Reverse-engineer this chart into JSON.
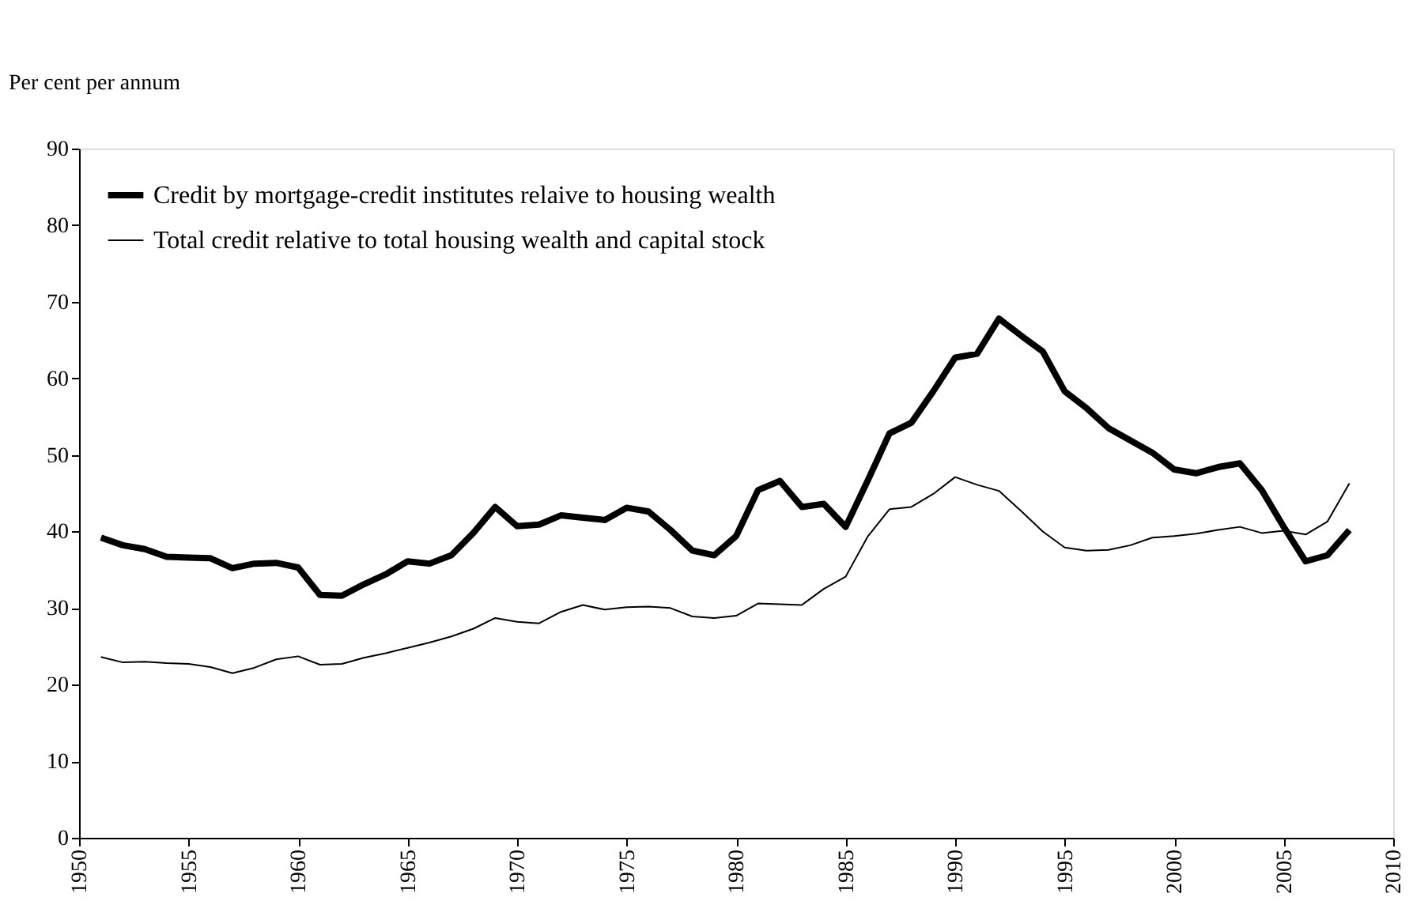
{
  "chart_data": {
    "type": "line",
    "ylabel": "Per cent per annum",
    "x": [
      1951,
      1952,
      1953,
      1954,
      1955,
      1956,
      1957,
      1958,
      1959,
      1960,
      1961,
      1962,
      1963,
      1964,
      1965,
      1966,
      1967,
      1968,
      1969,
      1970,
      1971,
      1972,
      1973,
      1974,
      1975,
      1976,
      1977,
      1978,
      1979,
      1980,
      1981,
      1982,
      1983,
      1984,
      1985,
      1986,
      1987,
      1988,
      1989,
      1990,
      1991,
      1992,
      1993,
      1994,
      1995,
      1996,
      1997,
      1998,
      1999,
      2000,
      2001,
      2002,
      2003,
      2004,
      2005,
      2006,
      2007,
      2008
    ],
    "series": [
      {
        "name": "Credit by mortgage-credit institutes relaive to housing wealth",
        "color": "#000000",
        "values": [
          39.2,
          38.2,
          37.7,
          36.7,
          36.6,
          36.5,
          35.2,
          35.8,
          35.9,
          35.3,
          31.7,
          31.6,
          33.1,
          34.4,
          36.1,
          35.8,
          36.9,
          39.8,
          43.2,
          40.7,
          40.9,
          42.1,
          41.8,
          41.5,
          43.1,
          42.6,
          40.2,
          37.5,
          36.9,
          39.4,
          45.4,
          46.6,
          43.2,
          43.6,
          40.6,
          46.6,
          52.8,
          54.2,
          58.3,
          62.7,
          63.2,
          67.8,
          65.6,
          63.5,
          58.3,
          56.1,
          53.5,
          51.9,
          50.3,
          48.1,
          47.6,
          48.4,
          48.9,
          45.4,
          40.6,
          36.1,
          36.9,
          40.2
        ]
      },
      {
        "name": "Total credit relative to total housing wealth and capital stock",
        "color": "#000000",
        "values": [
          23.6,
          22.9,
          23.0,
          22.8,
          22.7,
          22.3,
          21.5,
          22.2,
          23.3,
          23.7,
          22.6,
          22.7,
          23.5,
          24.1,
          24.8,
          25.5,
          26.3,
          27.3,
          28.7,
          28.2,
          28.0,
          29.5,
          30.4,
          29.8,
          30.1,
          30.2,
          30.0,
          28.9,
          28.7,
          29.0,
          30.6,
          30.5,
          30.4,
          32.5,
          34.1,
          39.3,
          42.9,
          43.2,
          44.9,
          47.1,
          46.1,
          45.3,
          42.7,
          40.0,
          37.9,
          37.5,
          37.6,
          38.2,
          39.2,
          39.4,
          39.7,
          40.2,
          40.6,
          39.8,
          40.1,
          39.6,
          41.3,
          46.3
        ]
      }
    ],
    "xlim": [
      1950,
      2010
    ],
    "xticks": [
      1950,
      1955,
      1960,
      1965,
      1970,
      1975,
      1980,
      1985,
      1990,
      1995,
      2000,
      2005,
      2010
    ],
    "ylim": [
      0,
      90
    ],
    "yticks": [
      0,
      10,
      20,
      30,
      40,
      50,
      60,
      70,
      80,
      90
    ],
    "grid": false,
    "legend": "top left",
    "marker": "none",
    "line_style": "solid"
  }
}
